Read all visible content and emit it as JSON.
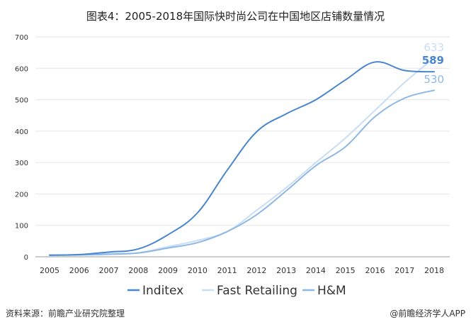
{
  "title": "图表4：2005-2018年国际快时尚公司在中国地区店铺数量情况",
  "source": "资料来源：前瞻产业研究院整理",
  "brand": "@前瞻经济学人APP",
  "colors": {
    "inditex": "#4a86cf",
    "fast_retailing": "#c9ddf3",
    "hm": "#8db8e6",
    "grid": "#e6e6e6",
    "axis": "#999999"
  },
  "chart_data": {
    "type": "line",
    "title": "图表4：2005-2018年国际快时尚公司在中国地区店铺数量情况",
    "xlabel": "",
    "ylabel": "",
    "x": [
      "2005",
      "2006",
      "2007",
      "2008",
      "2009",
      "2010",
      "2011",
      "2012",
      "2013",
      "2014",
      "2015",
      "2016",
      "2017",
      "2018"
    ],
    "yticks": [
      0,
      100,
      200,
      300,
      400,
      500,
      600,
      700
    ],
    "ylim": [
      0,
      700
    ],
    "grid": "horizontal",
    "legend": "bottom",
    "series": [
      {
        "name": "Inditex",
        "values": [
          5,
          7,
          15,
          25,
          70,
          140,
          275,
          398,
          455,
          500,
          563,
          620,
          593,
          589
        ],
        "end_label": "589"
      },
      {
        "name": "Fast Retailing",
        "values": [
          5,
          6,
          10,
          13,
          32,
          52,
          80,
          148,
          220,
          300,
          378,
          466,
          555,
          633
        ],
        "end_label": "633"
      },
      {
        "name": "H&M",
        "values": [
          5,
          6,
          8,
          12,
          28,
          45,
          80,
          134,
          210,
          290,
          350,
          446,
          505,
          530
        ],
        "end_label": "530"
      }
    ]
  }
}
